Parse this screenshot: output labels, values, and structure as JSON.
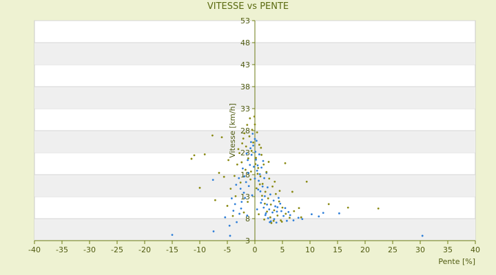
{
  "chart_data": {
    "type": "scatter",
    "title": "VITESSE vs PENTE",
    "xlabel": "Pente [%]",
    "ylabel": "Vitesse [km/h]",
    "xlim": [
      -40,
      40
    ],
    "ylim": [
      3,
      53
    ],
    "xticks": [
      -40,
      -35,
      -30,
      -25,
      -20,
      -15,
      -10,
      -5,
      0,
      5,
      10,
      15,
      20,
      25,
      30,
      35,
      40
    ],
    "yticks": [
      3,
      8,
      13,
      18,
      23,
      28,
      33,
      38,
      43,
      48,
      53
    ],
    "grid": "alternating horizontal bands",
    "colors": {
      "blue": "#2f7fd8",
      "olive": "#8a8a14",
      "band": "#efefef",
      "axis": "#6b7a10"
    },
    "series": [
      {
        "color_name": "blue",
        "points": [
          [
            -15.0,
            4.3
          ],
          [
            -7.5,
            5.1
          ],
          [
            -7.6,
            16.8
          ],
          [
            -4.5,
            4.1
          ],
          [
            -4.6,
            6.4
          ],
          [
            -3.3,
            7.2
          ],
          [
            -2.8,
            9.1
          ],
          [
            -2.4,
            11.8
          ],
          [
            -2.0,
            13.9
          ],
          [
            -1.6,
            16.3
          ],
          [
            -1.2,
            18.4
          ],
          [
            -0.9,
            20.2
          ],
          [
            -0.6,
            22.5
          ],
          [
            -0.3,
            24.6
          ],
          [
            0.0,
            26.1
          ],
          [
            0.2,
            21.4
          ],
          [
            0.4,
            18.9
          ],
          [
            0.7,
            16.6
          ],
          [
            1.0,
            14.2
          ],
          [
            1.3,
            12.3
          ],
          [
            1.6,
            10.5
          ],
          [
            2.0,
            9.2
          ],
          [
            2.4,
            8.1
          ],
          [
            2.9,
            7.4
          ],
          [
            3.5,
            7.9
          ],
          [
            4.0,
            9.6
          ],
          [
            4.6,
            11.4
          ],
          [
            5.2,
            8.6
          ],
          [
            5.8,
            7.5
          ],
          [
            6.4,
            8.8
          ],
          [
            7.0,
            7.6
          ],
          [
            7.9,
            8.2
          ],
          [
            8.6,
            7.9
          ],
          [
            10.3,
            9.0
          ],
          [
            11.6,
            8.5
          ],
          [
            12.4,
            9.3
          ],
          [
            15.3,
            9.2
          ],
          [
            30.4,
            4.1
          ],
          [
            -3.9,
            9.8
          ],
          [
            -2.6,
            14.8
          ],
          [
            -1.9,
            17.6
          ],
          [
            -1.3,
            21.3
          ],
          [
            -0.8,
            24.0
          ],
          [
            -0.4,
            27.3
          ],
          [
            0.1,
            23.2
          ],
          [
            0.5,
            20.1
          ],
          [
            0.9,
            18.1
          ],
          [
            1.4,
            15.3
          ],
          [
            1.8,
            13.1
          ],
          [
            2.2,
            11.2
          ],
          [
            2.6,
            10.1
          ],
          [
            3.2,
            9.4
          ],
          [
            3.7,
            10.8
          ],
          [
            4.3,
            12.7
          ],
          [
            -4.2,
            12.6
          ],
          [
            -3.4,
            15.7
          ],
          [
            -2.2,
            19.4
          ],
          [
            -1.5,
            22.8
          ],
          [
            -0.7,
            25.4
          ],
          [
            0.3,
            25.7
          ],
          [
            0.8,
            22.6
          ],
          [
            1.2,
            19.6
          ],
          [
            1.7,
            17.2
          ],
          [
            2.3,
            15.1
          ],
          [
            2.8,
            13.5
          ],
          [
            3.4,
            12.1
          ],
          [
            4.1,
            10.6
          ],
          [
            4.8,
            9.7
          ],
          [
            -5.4,
            8.3
          ],
          [
            -3.6,
            11.3
          ],
          [
            -2.9,
            17.2
          ],
          [
            -1.1,
            15.4
          ],
          [
            0.6,
            14.6
          ],
          [
            1.1,
            11.6
          ],
          [
            1.9,
            8.8
          ],
          [
            2.7,
            7.2
          ],
          [
            3.9,
            7.1
          ],
          [
            5.5,
            10.4
          ],
          [
            6.1,
            9.5
          ],
          [
            -0.2,
            19.8
          ],
          [
            0.0,
            17.1
          ],
          [
            -1.8,
            12.7
          ],
          [
            -2.5,
            10.3
          ],
          [
            1.5,
            21.1
          ],
          [
            2.1,
            18.4
          ],
          [
            -1.4,
            8.7
          ],
          [
            0.4,
            10.1
          ],
          [
            -0.5,
            13.3
          ]
        ]
      },
      {
        "color_name": "olive",
        "points": [
          [
            -11.5,
            21.6
          ],
          [
            -11.0,
            22.4
          ],
          [
            -9.1,
            22.6
          ],
          [
            -7.7,
            26.9
          ],
          [
            -6.0,
            26.5
          ],
          [
            -10.0,
            15.0
          ],
          [
            -7.2,
            12.2
          ],
          [
            -5.6,
            17.5
          ],
          [
            -4.4,
            14.8
          ],
          [
            -3.7,
            17.7
          ],
          [
            -3.2,
            20.3
          ],
          [
            -2.8,
            22.9
          ],
          [
            -2.3,
            25.1
          ],
          [
            -1.9,
            27.4
          ],
          [
            -1.4,
            29.3
          ],
          [
            -0.9,
            30.8
          ],
          [
            -0.5,
            28.2
          ],
          [
            0.0,
            29.4
          ],
          [
            0.4,
            27.6
          ],
          [
            0.8,
            24.8
          ],
          [
            1.2,
            22.5
          ],
          [
            1.6,
            20.3
          ],
          [
            2.1,
            18.6
          ],
          [
            2.6,
            17.1
          ],
          [
            3.2,
            15.3
          ],
          [
            3.8,
            13.6
          ],
          [
            4.4,
            11.9
          ],
          [
            5.0,
            10.5
          ],
          [
            5.6,
            9.1
          ],
          [
            6.3,
            8.2
          ],
          [
            7.1,
            9.7
          ],
          [
            8.0,
            10.4
          ],
          [
            9.4,
            16.4
          ],
          [
            13.4,
            11.3
          ],
          [
            16.9,
            10.5
          ],
          [
            22.4,
            10.3
          ],
          [
            5.5,
            20.6
          ],
          [
            6.8,
            14.1
          ],
          [
            -4.8,
            21.3
          ],
          [
            -3.0,
            23.8
          ],
          [
            -2.1,
            26.2
          ],
          [
            -1.6,
            24.4
          ],
          [
            -1.0,
            26.7
          ],
          [
            -0.3,
            25.3
          ],
          [
            0.2,
            21.8
          ],
          [
            0.6,
            19.5
          ],
          [
            1.0,
            17.6
          ],
          [
            1.4,
            15.9
          ],
          [
            1.9,
            14.1
          ],
          [
            2.4,
            12.6
          ],
          [
            2.9,
            11.2
          ],
          [
            3.5,
            9.9
          ],
          [
            4.1,
            8.7
          ],
          [
            4.7,
            7.6
          ],
          [
            -5.0,
            10.9
          ],
          [
            -3.5,
            13.1
          ],
          [
            -2.6,
            16.2
          ],
          [
            -1.7,
            19.1
          ],
          [
            -1.2,
            21.7
          ],
          [
            -0.6,
            23.4
          ],
          [
            0.1,
            20.4
          ],
          [
            0.5,
            18.2
          ],
          [
            0.9,
            15.8
          ],
          [
            1.3,
            13.2
          ],
          [
            1.8,
            11.4
          ],
          [
            2.2,
            9.6
          ],
          [
            2.8,
            8.3
          ],
          [
            3.4,
            7.5
          ],
          [
            -6.5,
            18.4
          ],
          [
            -4.0,
            8.6
          ],
          [
            -2.0,
            9.4
          ],
          [
            -1.3,
            11.8
          ],
          [
            0.7,
            9.0
          ],
          [
            1.7,
            7.8
          ],
          [
            3.0,
            7.0
          ],
          [
            4.9,
            7.3
          ],
          [
            8.4,
            8.3
          ],
          [
            -0.8,
            16.9
          ],
          [
            0.3,
            14.9
          ],
          [
            -2.4,
            20.8
          ],
          [
            2.5,
            20.9
          ],
          [
            1.1,
            24.1
          ],
          [
            -0.1,
            31.2
          ],
          [
            -0.7,
            18.7
          ],
          [
            3.6,
            16.4
          ],
          [
            4.5,
            14.3
          ]
        ]
      }
    ]
  }
}
